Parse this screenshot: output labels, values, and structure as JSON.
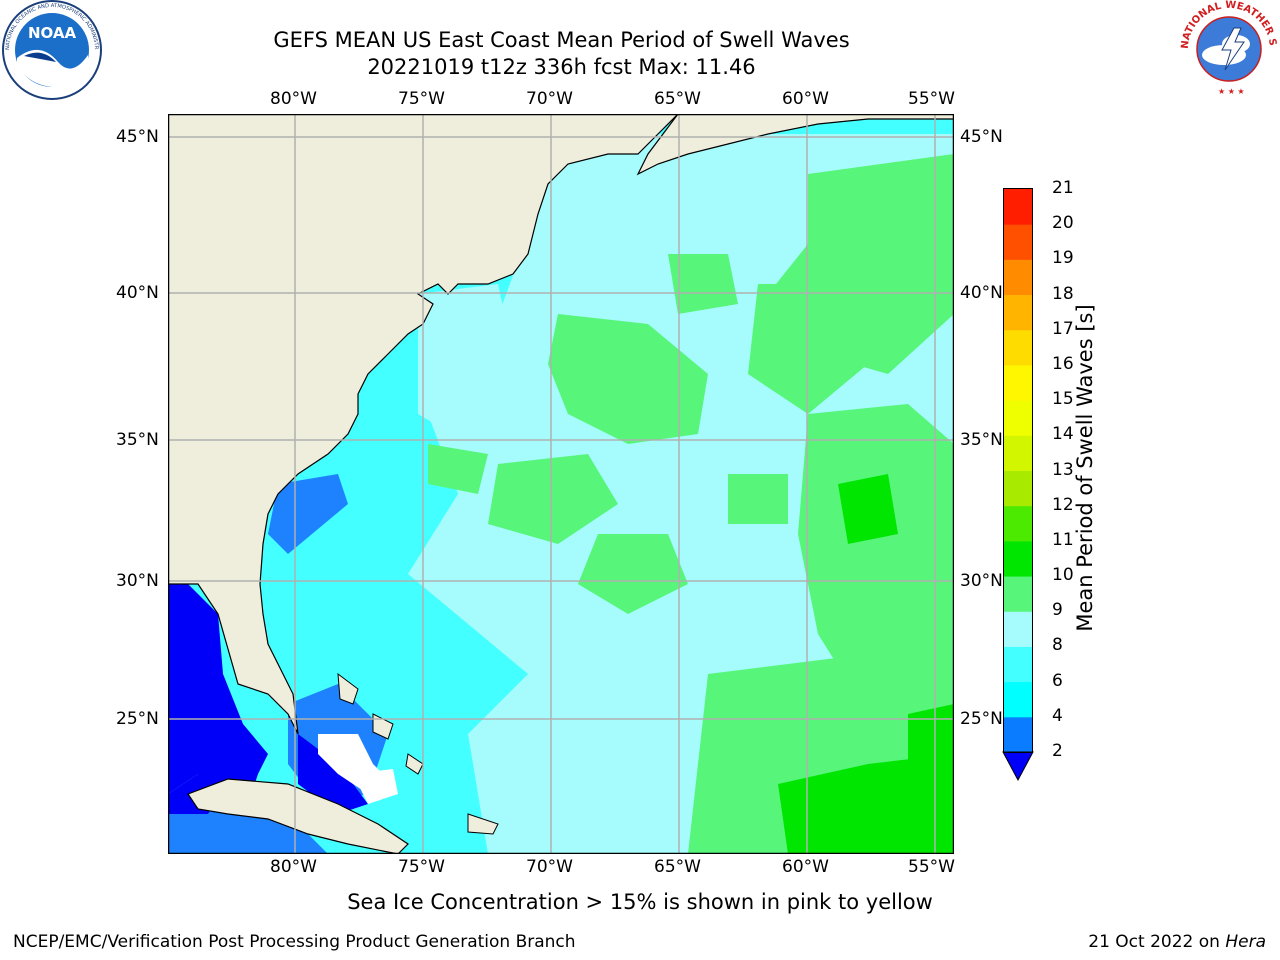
{
  "header": {
    "title_line1": "GEFS MEAN US East Coast Mean Period of Swell Waves",
    "title_line2": "20221019 t12z 336h fcst   Max: 11.46"
  },
  "logos": {
    "left": {
      "text": "NOAA",
      "ring_text": "NATIONAL OCEANIC AND ATMOSPHERIC ADMINISTRATION · U.S. DEPARTMENT OF COMMERCE"
    },
    "right": {
      "ring_text": "NATIONAL WEATHER SERVICE"
    }
  },
  "map": {
    "lon_labels": [
      "80°W",
      "75°W",
      "70°W",
      "65°W",
      "60°W",
      "55°W"
    ],
    "lat_labels": [
      "45°N",
      "40°N",
      "35°N",
      "30°N",
      "25°N"
    ],
    "colors": {
      "land": "#efeedd",
      "ocean_low": "#44ffff",
      "ocean_mid": "#a6fcfc",
      "ocean_high": "#57f57a",
      "shallow": "#1e82ff",
      "deep_blue": "#0000f8",
      "grid": "#b0b0b0"
    }
  },
  "colorbar": {
    "label": "Mean Period of Swell Waves [s]",
    "ticks": [
      "2",
      "4",
      "6",
      "8",
      "9",
      "10",
      "11",
      "12",
      "13",
      "14",
      "15",
      "16",
      "17",
      "18",
      "19",
      "20",
      "21"
    ],
    "colors": [
      "#0a7cff",
      "#00ffff",
      "#44ffff",
      "#a6fcfc",
      "#57f57a",
      "#00e600",
      "#4cea00",
      "#a8ea00",
      "#d2f500",
      "#f0ff00",
      "#fff700",
      "#ffdc00",
      "#ffb400",
      "#ff8c00",
      "#ff5000",
      "#ff1e00"
    ],
    "extend_color": "#0000f8"
  },
  "footer": {
    "note": "Sea Ice Concentration > 15% is shown in pink to yellow",
    "left": "NCEP/EMC/Verification Post Processing Product Generation Branch",
    "right_date": "21 Oct 2022 on ",
    "right_host": "Hera"
  }
}
